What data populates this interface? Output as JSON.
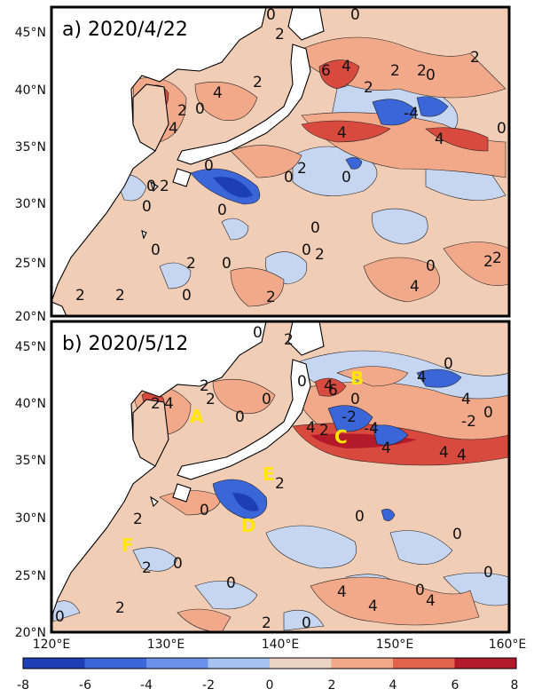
{
  "panels": [
    {
      "title": "a) 2020/4/22",
      "contour_labels": [
        "0",
        "2",
        "0",
        "2",
        "4",
        "0",
        "2",
        "4",
        "0",
        "2",
        "0",
        "0",
        "6",
        "4",
        "2",
        "2",
        "-4",
        "4",
        "4",
        "2",
        "2",
        "0",
        "2",
        "0",
        "0",
        "0",
        "2",
        "0",
        "0",
        "0",
        "2",
        "0",
        "0",
        "2",
        "0",
        "2",
        "2",
        "2",
        "4",
        "0",
        "2"
      ],
      "region_labels": []
    },
    {
      "title": "b) 2020/5/12",
      "contour_labels": [
        "0",
        "2",
        "2",
        "4",
        "2",
        "2",
        "0",
        "0",
        "0",
        "4",
        "0",
        "-2",
        "4",
        "2",
        "6",
        "4",
        "-4",
        "-2",
        "4",
        "4",
        "4",
        "0",
        "4",
        "0",
        "0",
        "0",
        "2",
        "0",
        "0",
        "2",
        "0",
        "0",
        "0",
        "2",
        "0",
        "4",
        "4",
        "4",
        "0",
        "2",
        "2"
      ],
      "region_labels": [
        "A",
        "B",
        "C",
        "D",
        "E",
        "F"
      ]
    }
  ],
  "lat_labels": [
    "45°N",
    "40°N",
    "35°N",
    "30°N",
    "25°N",
    "20°N"
  ],
  "lon_labels": [
    "120°E",
    "130°E",
    "140°E",
    "150°E",
    "160°E"
  ],
  "colorbar": {
    "ticks": [
      "-8",
      "-6",
      "-4",
      "-2",
      "0",
      "2",
      "4",
      "6",
      "8"
    ],
    "colors": [
      "#1d3fb6",
      "#3b66d8",
      "#6b92ea",
      "#a7c3f2",
      "#ecd5c4",
      "#f2a98a",
      "#e2634b",
      "#b41b2a"
    ]
  },
  "colors": {
    "land": "#ffffff",
    "ocean_base": "#f2cdb6",
    "frame": "#000000",
    "region_label": "#ffe600"
  }
}
